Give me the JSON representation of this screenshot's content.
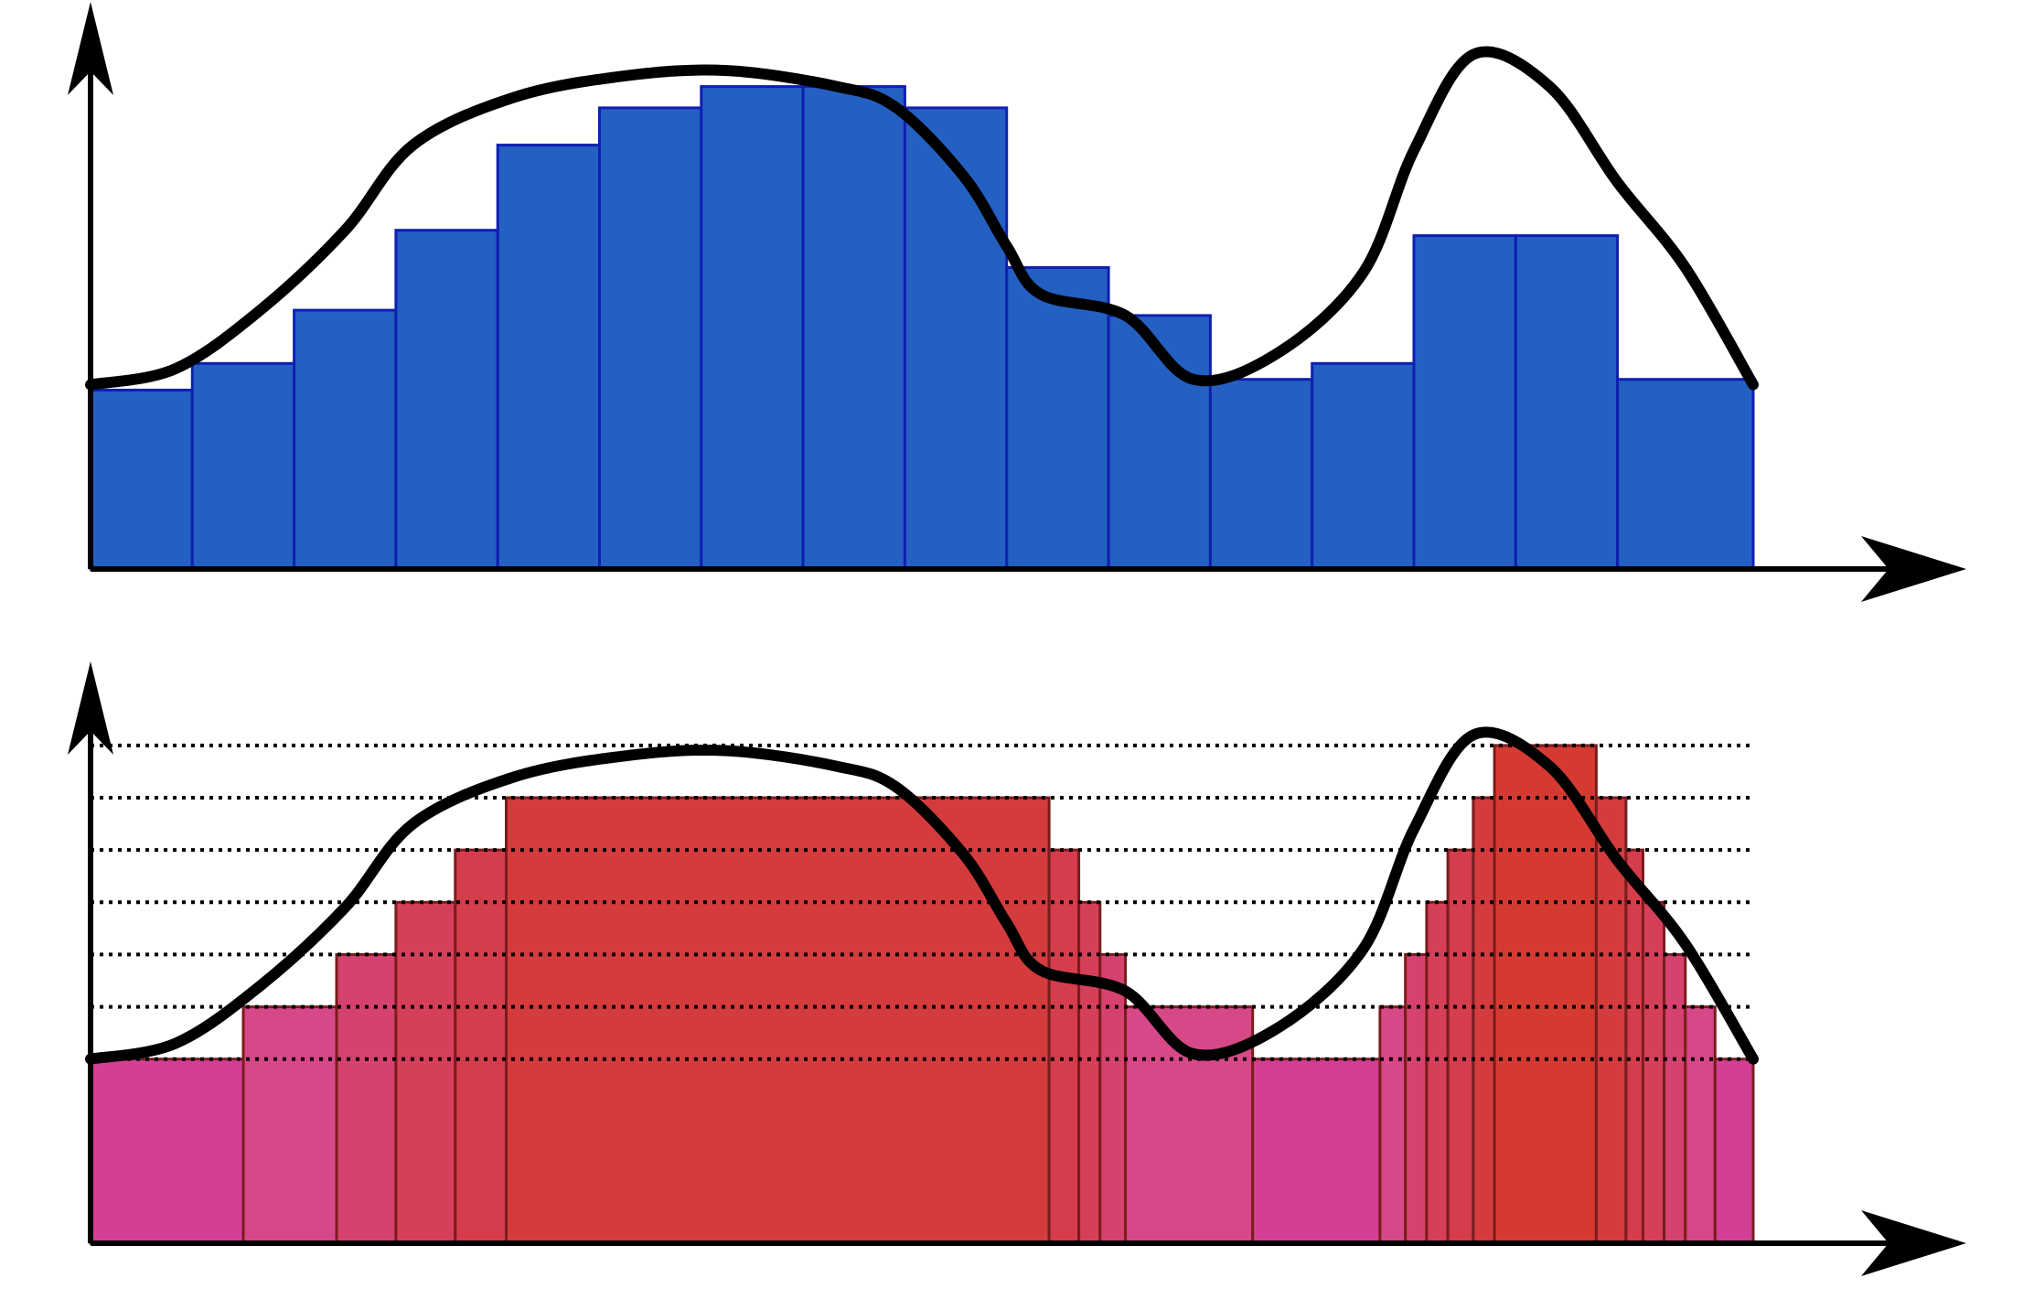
{
  "figure": {
    "title": "",
    "curve": [
      [
        0,
        0.64
      ],
      [
        0.1,
        0.61
      ],
      [
        0.2,
        0.5
      ],
      [
        0.3,
        0.35
      ],
      [
        0.38,
        0.19
      ],
      [
        0.5,
        0.1
      ],
      [
        0.63,
        0.06
      ],
      [
        0.75,
        0.05
      ],
      [
        0.88,
        0.08
      ],
      [
        0.95,
        0.12
      ],
      [
        1.03,
        0.25
      ],
      [
        1.08,
        0.38
      ],
      [
        1.12,
        0.47
      ],
      [
        1.22,
        0.51
      ],
      [
        1.3,
        0.63
      ],
      [
        1.4,
        0.58
      ],
      [
        1.5,
        0.43
      ],
      [
        1.56,
        0.2
      ],
      [
        1.63,
        0.02
      ],
      [
        1.72,
        0.08
      ],
      [
        1.8,
        0.26
      ],
      [
        1.88,
        0.42
      ],
      [
        1.96,
        0.64
      ]
    ],
    "colors": {
      "blue_fill": "#2460c2",
      "blue_edge": "#0f1fb0",
      "red_fill": "#d43b3d",
      "pink_fill": "#d43f96",
      "dark_edge": "#7a1c1c",
      "curve": "#000000",
      "axis": "#000000"
    }
  },
  "top_panel": {
    "type": "bar-histogram",
    "bin_edges": [
      0.0,
      0.12,
      0.24,
      0.36,
      0.48,
      0.6,
      0.72,
      0.84,
      0.96,
      1.08,
      1.2,
      1.32,
      1.44,
      1.56,
      1.68,
      1.8,
      1.96
    ],
    "values": [
      0.65,
      0.6,
      0.5,
      0.35,
      0.19,
      0.12,
      0.08,
      0.08,
      0.12,
      0.42,
      0.51,
      0.63,
      0.6,
      0.36,
      0.36,
      0.63
    ]
  },
  "bottom_panel": {
    "type": "quantized-histogram",
    "levels": [
      0.64,
      0.54,
      0.44,
      0.34,
      0.24,
      0.14,
      0.04
    ],
    "bars": [
      {
        "x0": 0.0,
        "x1": 0.18,
        "level": 0.64,
        "color": "#d43f96"
      },
      {
        "x0": 0.18,
        "x1": 0.29,
        "level": 0.54,
        "color": "#d64887"
      },
      {
        "x0": 0.29,
        "x1": 0.36,
        "level": 0.44,
        "color": "#d64270"
      },
      {
        "x0": 0.36,
        "x1": 0.43,
        "level": 0.34,
        "color": "#d63f5a"
      },
      {
        "x0": 0.43,
        "x1": 0.49,
        "level": 0.24,
        "color": "#d53d4c"
      },
      {
        "x0": 0.49,
        "x1": 1.13,
        "level": 0.14,
        "color": "#d43b3d"
      },
      {
        "x0": 1.13,
        "x1": 1.165,
        "level": 0.24,
        "color": "#d53d4c"
      },
      {
        "x0": 1.165,
        "x1": 1.19,
        "level": 0.34,
        "color": "#d63f5a"
      },
      {
        "x0": 1.19,
        "x1": 1.22,
        "level": 0.44,
        "color": "#d64270"
      },
      {
        "x0": 1.22,
        "x1": 1.37,
        "level": 0.54,
        "color": "#d64887"
      },
      {
        "x0": 1.37,
        "x1": 1.52,
        "level": 0.64,
        "color": "#d43f96"
      },
      {
        "x0": 1.52,
        "x1": 1.55,
        "level": 0.54,
        "color": "#d64887"
      },
      {
        "x0": 1.55,
        "x1": 1.575,
        "level": 0.44,
        "color": "#d64270"
      },
      {
        "x0": 1.575,
        "x1": 1.6,
        "level": 0.34,
        "color": "#d63f5a"
      },
      {
        "x0": 1.6,
        "x1": 1.63,
        "level": 0.24,
        "color": "#d53d4c"
      },
      {
        "x0": 1.63,
        "x1": 1.655,
        "level": 0.14,
        "color": "#d43b3d"
      },
      {
        "x0": 1.655,
        "x1": 1.775,
        "level": 0.04,
        "color": "#d43a31"
      },
      {
        "x0": 1.775,
        "x1": 1.81,
        "level": 0.14,
        "color": "#d43b3d"
      },
      {
        "x0": 1.81,
        "x1": 1.83,
        "level": 0.24,
        "color": "#d53d4c"
      },
      {
        "x0": 1.83,
        "x1": 1.855,
        "level": 0.34,
        "color": "#d63f5a"
      },
      {
        "x0": 1.855,
        "x1": 1.88,
        "level": 0.44,
        "color": "#d64270"
      },
      {
        "x0": 1.88,
        "x1": 1.915,
        "level": 0.54,
        "color": "#d64887"
      },
      {
        "x0": 1.915,
        "x1": 1.96,
        "level": 0.64,
        "color": "#d43f96"
      }
    ]
  }
}
